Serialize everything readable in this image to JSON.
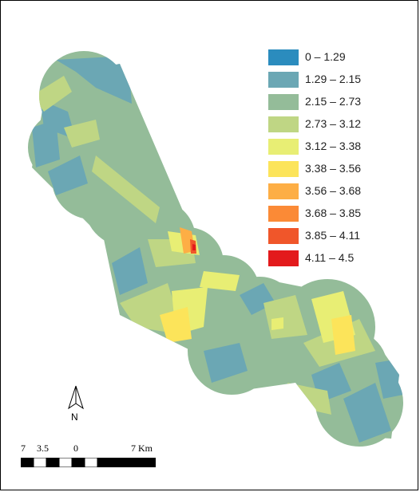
{
  "legend": {
    "classes": [
      {
        "label": "0 – 1.29",
        "color": "#2b8cbe"
      },
      {
        "label": "1.29 – 2.15",
        "color": "#6ba7b4"
      },
      {
        "label": "2.15 – 2.73",
        "color": "#94bc99"
      },
      {
        "label": "2.73 – 3.12",
        "color": "#bfd684"
      },
      {
        "label": "3.12 – 3.38",
        "color": "#e8ee74"
      },
      {
        "label": "3.38 – 3.56",
        "color": "#fce45a"
      },
      {
        "label": "3.56 – 3.68",
        "color": "#fdae45"
      },
      {
        "label": "3.68 – 3.85",
        "color": "#fb8a36"
      },
      {
        "label": "3.85 – 4.11",
        "color": "#f0562a"
      },
      {
        "label": "4.11 – 4.5",
        "color": "#e31a1c"
      }
    ]
  },
  "north_arrow": {
    "label": "N"
  },
  "scale_bar": {
    "ticks": [
      "7",
      "3.5",
      "0",
      "7 Km"
    ]
  }
}
